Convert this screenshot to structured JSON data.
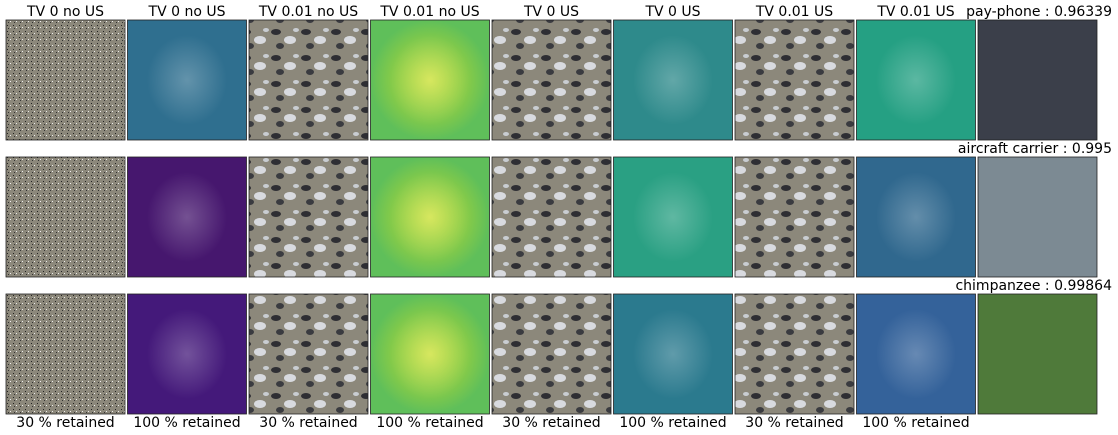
{
  "columns": [
    {
      "title": "TV 0 no US",
      "footer": "30 % retained"
    },
    {
      "title": "TV 0 no US",
      "footer": "100 % retained"
    },
    {
      "title": "TV 0.01 no US",
      "footer": "30 % retained"
    },
    {
      "title": "TV 0.01 no US",
      "footer": "100 % retained"
    },
    {
      "title": "TV 0 US",
      "footer": "30 % retained"
    },
    {
      "title": "TV 0 US",
      "footer": "100 % retained"
    },
    {
      "title": "TV 0.01 US",
      "footer": "30 % retained"
    },
    {
      "title": "TV 0.01 US",
      "footer": "100 % retained"
    }
  ],
  "rows": [
    {
      "label": "pay-phone : 0.96339"
    },
    {
      "label": "aircraft carrier : 0.995"
    },
    {
      "label": "chimpanzee : 0.99864"
    }
  ]
}
